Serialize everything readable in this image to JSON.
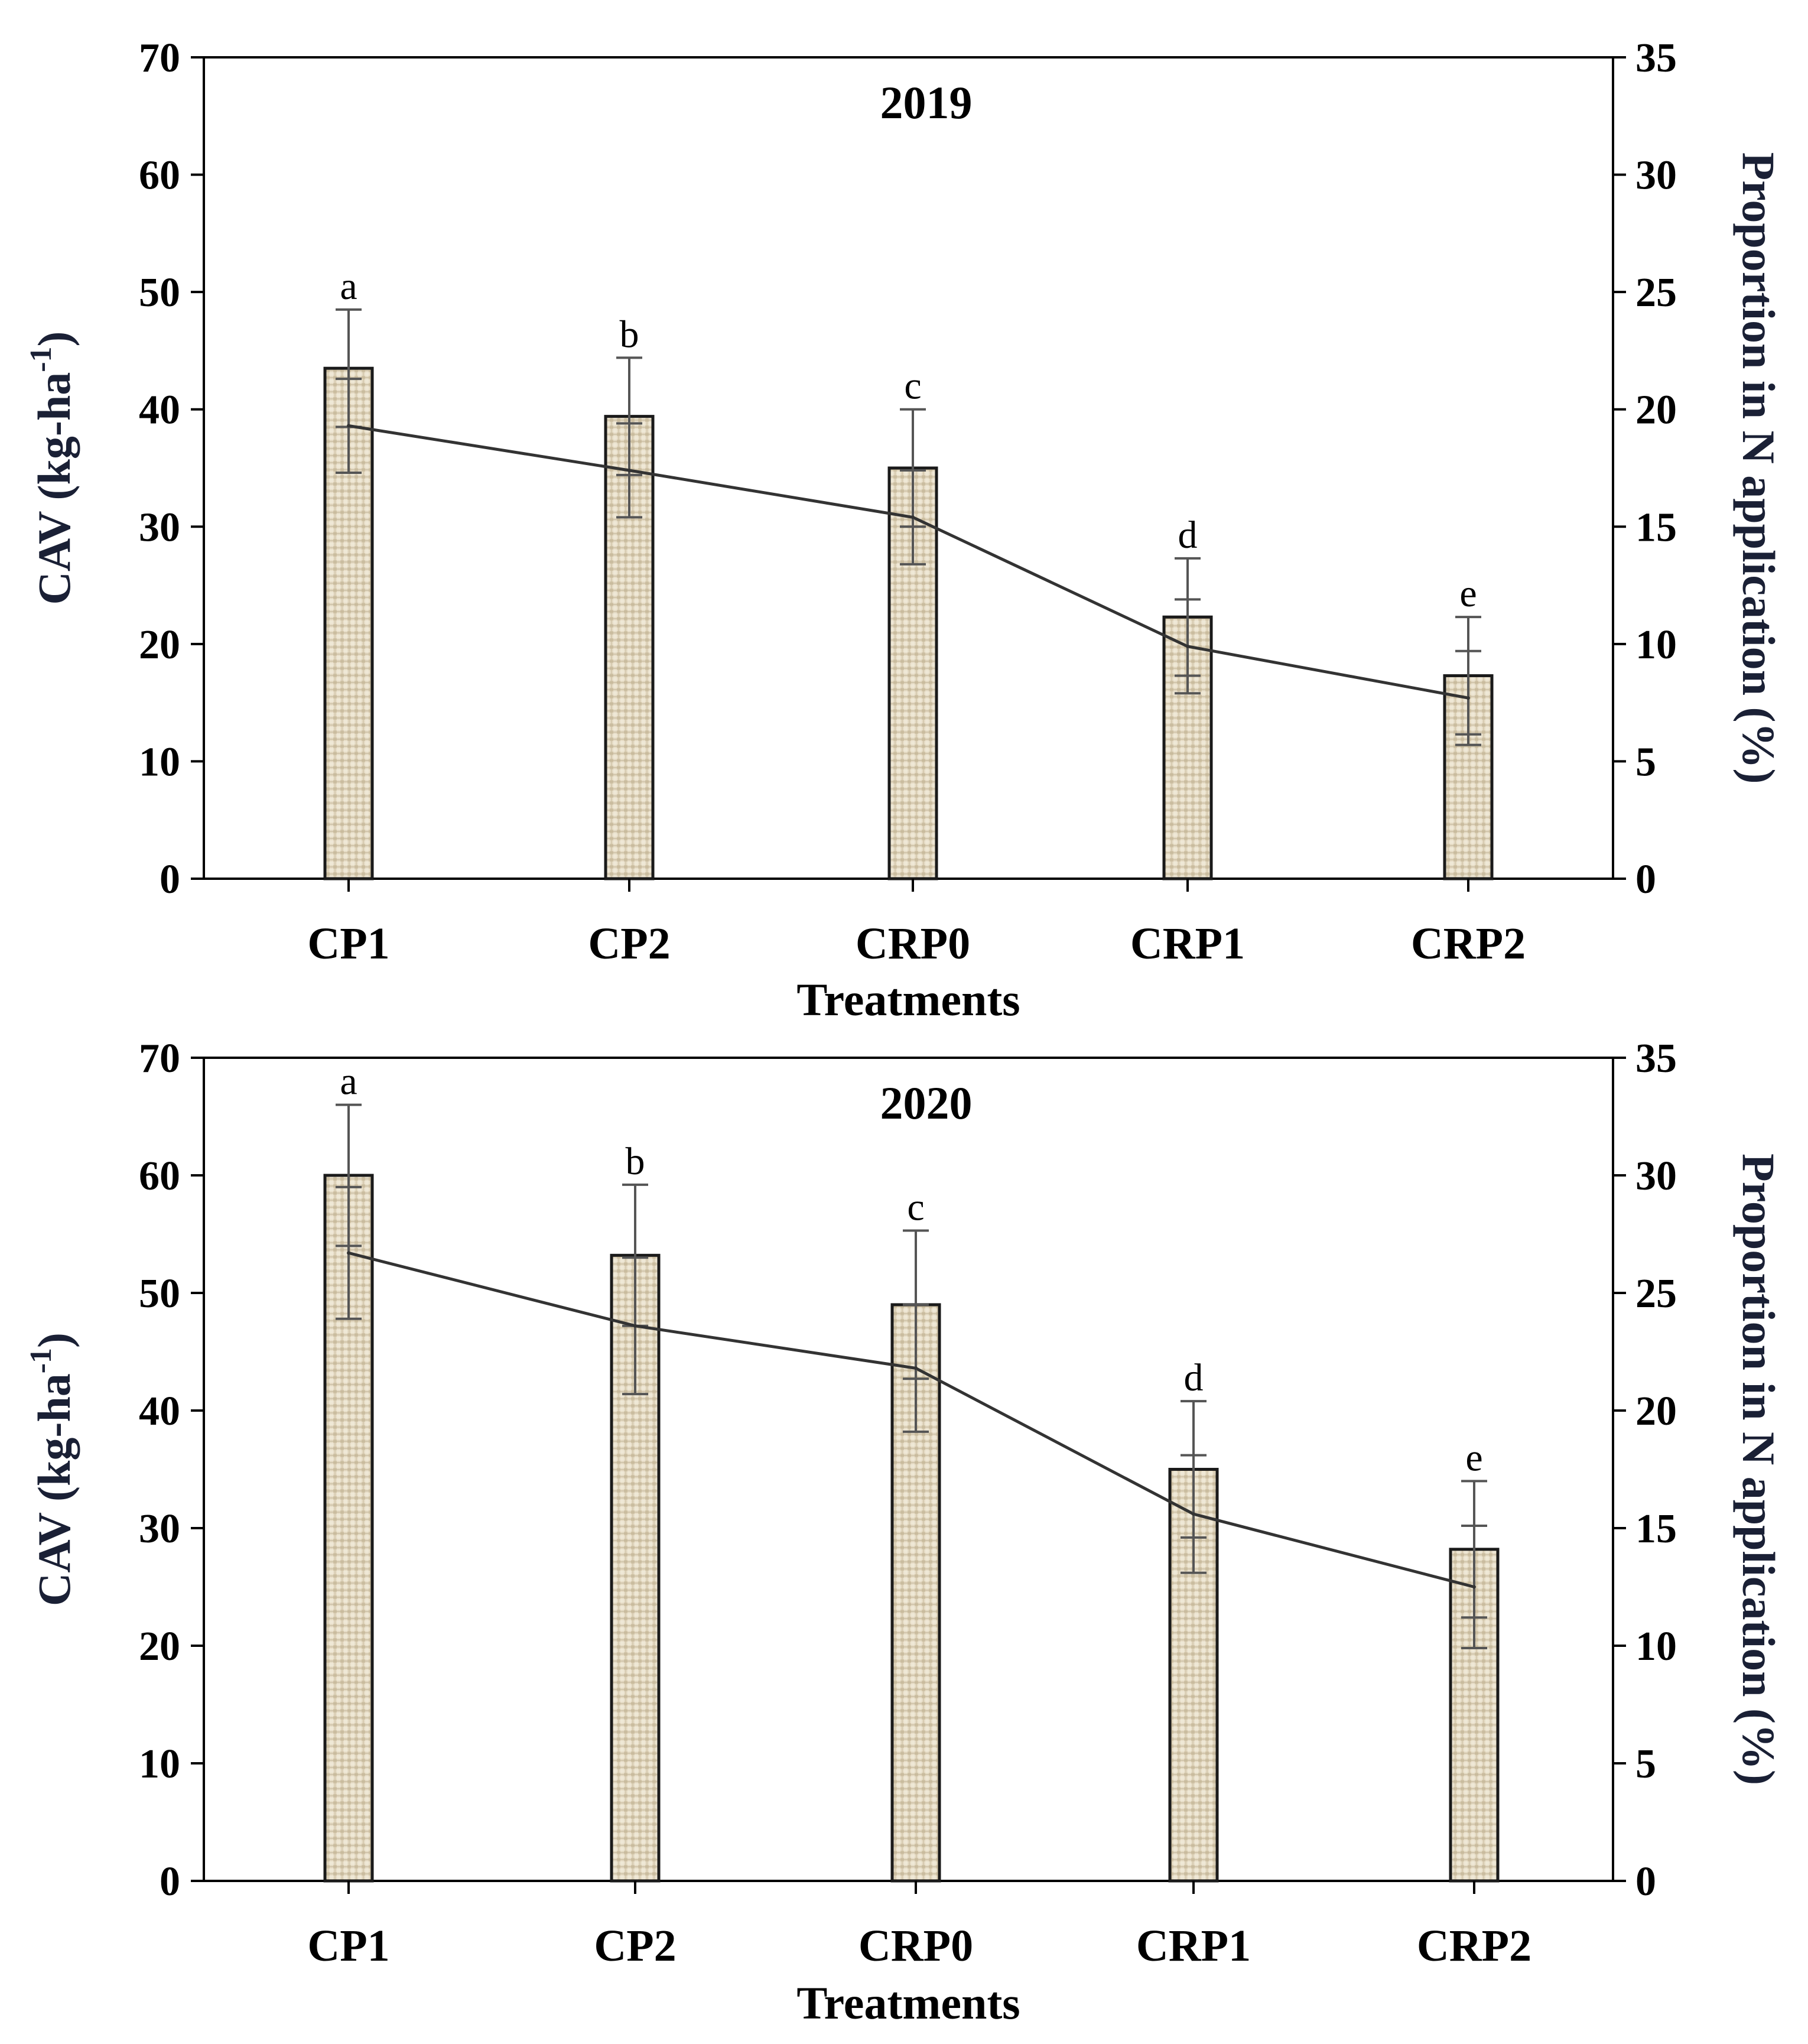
{
  "chart_data": [
    {
      "type": "bar+line",
      "title": "2019",
      "xlabel": "Treatments",
      "ylabel_left": "CAV (kg-ha-1)",
      "ylabel_left_parts": {
        "main": "CAV (kg-ha",
        "sup": "-1",
        "end": ")"
      },
      "ylabel_right": "Proportion in N application (%)",
      "categories": [
        "CP1",
        "CP2",
        "CRP0",
        "CRP1",
        "CRP2"
      ],
      "ylim_left": [
        0,
        70
      ],
      "ylim_right": [
        0,
        35
      ],
      "yticks_left": [
        "0",
        "10",
        "20",
        "30",
        "40",
        "50",
        "60",
        "70"
      ],
      "yticks_right": [
        "0",
        "5",
        "10",
        "15",
        "20",
        "25",
        "30",
        "35"
      ],
      "series": [
        {
          "name": "CAV",
          "axis": "left",
          "kind": "bar",
          "values": [
            43.5,
            39.4,
            35.0,
            22.3,
            17.3
          ],
          "errors": [
            5.0,
            5.0,
            5.0,
            5.0,
            5.0
          ],
          "labels": [
            "a",
            "b",
            "c",
            "d",
            "e"
          ]
        },
        {
          "name": "Proportion in N application",
          "axis": "right",
          "kind": "line",
          "values": [
            19.3,
            17.4,
            15.4,
            9.9,
            7.7
          ],
          "errors": [
            2.0,
            2.0,
            2.0,
            2.0,
            2.0
          ]
        }
      ]
    },
    {
      "type": "bar+line",
      "title": "2020",
      "xlabel": "Treatments",
      "ylabel_left": "CAV (kg-ha-1)",
      "ylabel_left_parts": {
        "main": "CAV (kg-ha",
        "sup": "-1",
        "end": ")"
      },
      "ylabel_right": "Proportion in N application (%)",
      "categories": [
        "CP1",
        "CP2",
        "CRP0",
        "CRP1",
        "CRP2"
      ],
      "ylim_left": [
        0,
        70
      ],
      "ylim_right": [
        0,
        35
      ],
      "yticks_left": [
        "0",
        "10",
        "20",
        "30",
        "40",
        "50",
        "60",
        "70"
      ],
      "yticks_right": [
        "0",
        "5",
        "10",
        "15",
        "20",
        "25",
        "30",
        "35"
      ],
      "series": [
        {
          "name": "CAV",
          "axis": "left",
          "kind": "bar",
          "values": [
            60.0,
            53.2,
            49.0,
            35.0,
            28.2
          ],
          "errors": [
            6.0,
            6.0,
            6.3,
            5.8,
            5.8
          ],
          "labels": [
            "a",
            "b",
            "c",
            "d",
            "e"
          ]
        },
        {
          "name": "Proportion in N application",
          "axis": "right",
          "kind": "line",
          "values": [
            26.7,
            23.6,
            21.8,
            15.6,
            12.5
          ],
          "errors": [
            2.8,
            2.9,
            2.7,
            2.5,
            2.6
          ]
        }
      ]
    }
  ]
}
